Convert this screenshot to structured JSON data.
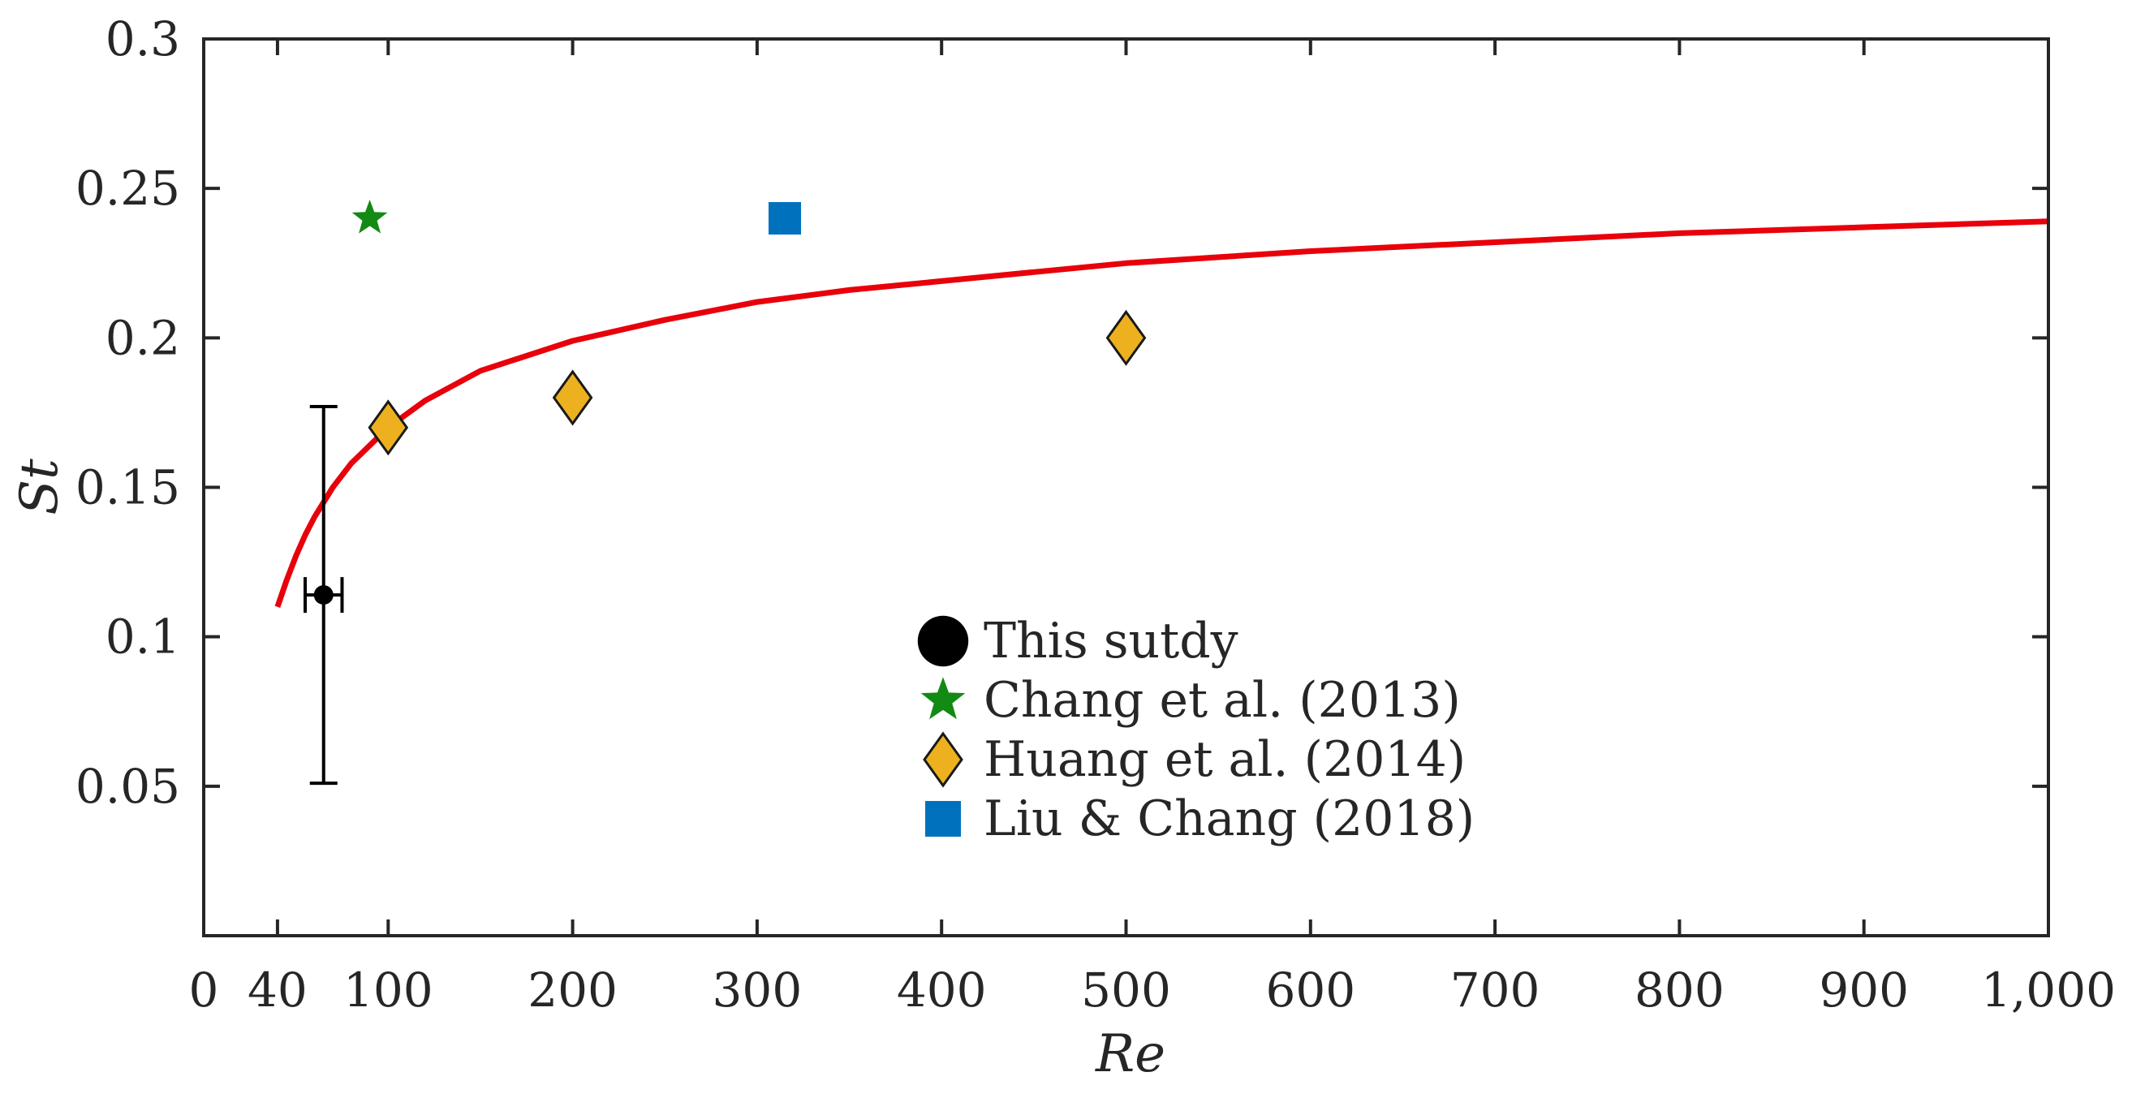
{
  "chart_data": {
    "type": "scatter",
    "title": "",
    "xlabel": "Re",
    "ylabel": "St",
    "xlim": [
      0,
      1000
    ],
    "ylim": [
      0,
      0.3
    ],
    "x_ticks": [
      0,
      40,
      100,
      200,
      300,
      400,
      500,
      600,
      700,
      800,
      900,
      1000
    ],
    "x_tick_labels": [
      "0",
      "40",
      "100",
      "200",
      "300",
      "400",
      "500",
      "600",
      "700",
      "800",
      "900",
      "1,000"
    ],
    "y_ticks": [
      0.05,
      0.1,
      0.15,
      0.2,
      0.25,
      0.3
    ],
    "y_tick_labels": [
      "0.05",
      "0.1",
      "0.15",
      "0.2",
      "0.25",
      "0.3"
    ],
    "grid": false,
    "legend_position": "center",
    "fit_curve": {
      "name": "fit",
      "color": "#e8000b",
      "points": [
        [
          40,
          0.11
        ],
        [
          45,
          0.119
        ],
        [
          50,
          0.127
        ],
        [
          55,
          0.134
        ],
        [
          60,
          0.14
        ],
        [
          70,
          0.15
        ],
        [
          80,
          0.158
        ],
        [
          90,
          0.164
        ],
        [
          100,
          0.17
        ],
        [
          120,
          0.179
        ],
        [
          150,
          0.189
        ],
        [
          200,
          0.199
        ],
        [
          250,
          0.206
        ],
        [
          300,
          0.212
        ],
        [
          350,
          0.216
        ],
        [
          400,
          0.219
        ],
        [
          450,
          0.222
        ],
        [
          500,
          0.225
        ],
        [
          600,
          0.229
        ],
        [
          700,
          0.232
        ],
        [
          800,
          0.235
        ],
        [
          900,
          0.237
        ],
        [
          1000,
          0.239
        ]
      ]
    },
    "series": [
      {
        "name": "This sutdy",
        "marker": "circle",
        "color": "#000000",
        "points": [
          {
            "x": 65,
            "y": 0.114,
            "xerr": [
              55,
              75
            ],
            "yerr": [
              0.051,
              0.177
            ]
          }
        ]
      },
      {
        "name": "Chang et al. (2013)",
        "marker": "star",
        "color": "#138a13",
        "points": [
          {
            "x": 90,
            "y": 0.24
          }
        ]
      },
      {
        "name": "Huang et al. (2014)",
        "marker": "diamond",
        "color": "#edb120",
        "points": [
          {
            "x": 100,
            "y": 0.17
          },
          {
            "x": 200,
            "y": 0.18
          },
          {
            "x": 500,
            "y": 0.2
          }
        ]
      },
      {
        "name": "Liu & Chang (2018)",
        "marker": "square",
        "color": "#0072bd",
        "points": [
          {
            "x": 315,
            "y": 0.24
          }
        ]
      }
    ]
  }
}
